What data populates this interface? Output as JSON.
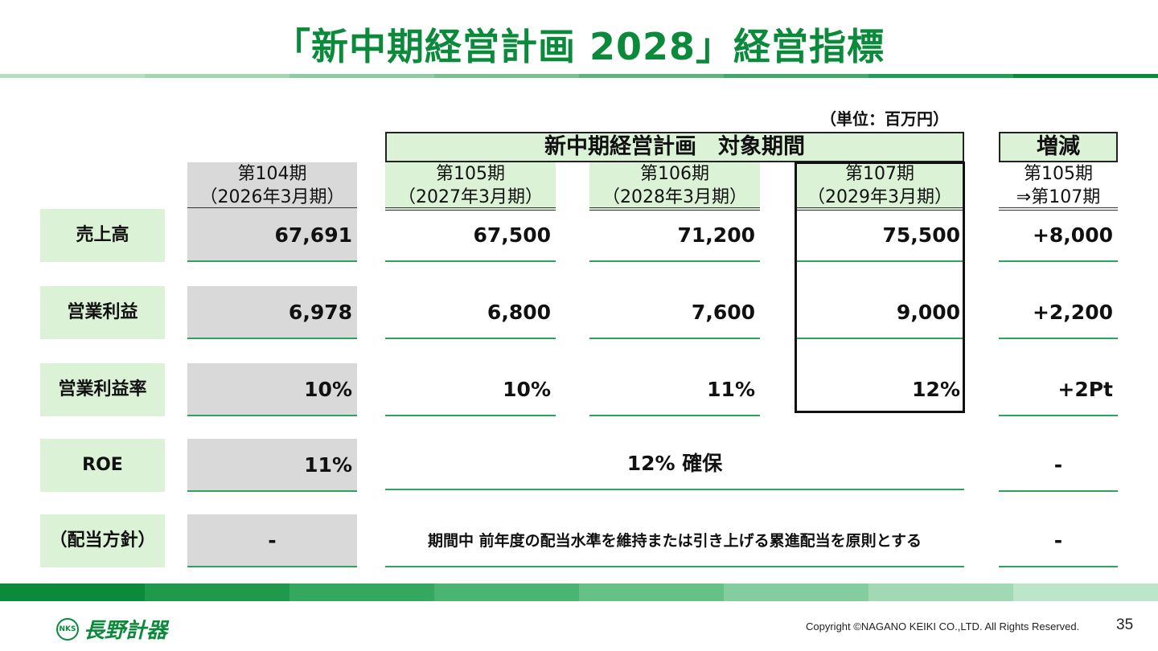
{
  "title": "「新中期経営計画 2028」経営指標",
  "unit": "（単位：百万円）",
  "banner_plan": "新中期経営計画　対象期間",
  "banner_change": "増減",
  "columns": [
    {
      "line1": "第104期",
      "line2": "（2026年3月期）"
    },
    {
      "line1": "第105期",
      "line2": "（2027年3月期）"
    },
    {
      "line1": "第106期",
      "line2": "（2028年3月期）"
    },
    {
      "line1": "第107期",
      "line2": "（2029年3月期）"
    },
    {
      "line1": "第105期",
      "line2": "⇒第107期"
    }
  ],
  "rows": [
    {
      "label": "売上高",
      "v104": "67,691",
      "v105": "67,500",
      "v106": "71,200",
      "v107": "75,500",
      "change": "+8,000"
    },
    {
      "label": "営業利益",
      "v104": "6,978",
      "v105": "6,800",
      "v106": "7,600",
      "v107": "9,000",
      "change": "+2,200"
    },
    {
      "label": "営業利益率",
      "v104": "10%",
      "v105": "10%",
      "v106": "11%",
      "v107": "12%",
      "change": "+2Pt"
    },
    {
      "label": "ROE",
      "v104": "11%",
      "plan": "12% 確保",
      "change": "-"
    },
    {
      "label": "（配当方針）",
      "v104": "-",
      "plan": "期間中 前年度の配当水準を維持または引き上げる累進配当を原則とする",
      "change": "-"
    }
  ],
  "logo": {
    "mark": "NKS",
    "name": "長野計器"
  },
  "copyright": "Copyright ©NAGANO KEIKI CO.,LTD. All Rights Reserved.",
  "page_number": "35",
  "colors": {
    "accent": "#0a8a3a",
    "light_green": "#dcf2d6",
    "gray": "#d9d9d9",
    "line_green": "#2aa55a"
  }
}
